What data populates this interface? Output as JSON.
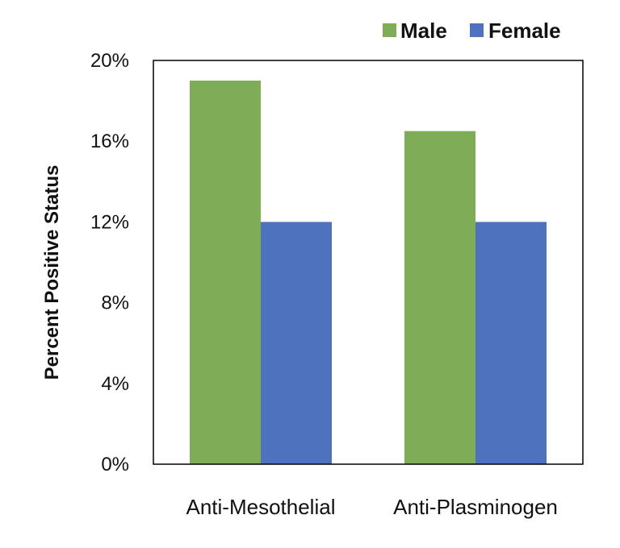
{
  "chart_data": {
    "type": "bar",
    "title": "",
    "xlabel": "",
    "ylabel": "Percent Positive Status",
    "ylim": [
      0,
      20
    ],
    "yticks": [
      0,
      4,
      8,
      12,
      16,
      20
    ],
    "ytick_labels": [
      "0%",
      "4%",
      "8%",
      "12%",
      "16%",
      "20%"
    ],
    "categories": [
      "Anti-Mesothelial",
      "Anti-Plasminogen"
    ],
    "series": [
      {
        "name": "Male",
        "values": [
          19,
          16.5
        ],
        "color": "#7fac56"
      },
      {
        "name": "Female",
        "values": [
          12,
          12
        ],
        "color": "#4f72be"
      }
    ],
    "legend_position": "top-right",
    "grid": false
  }
}
